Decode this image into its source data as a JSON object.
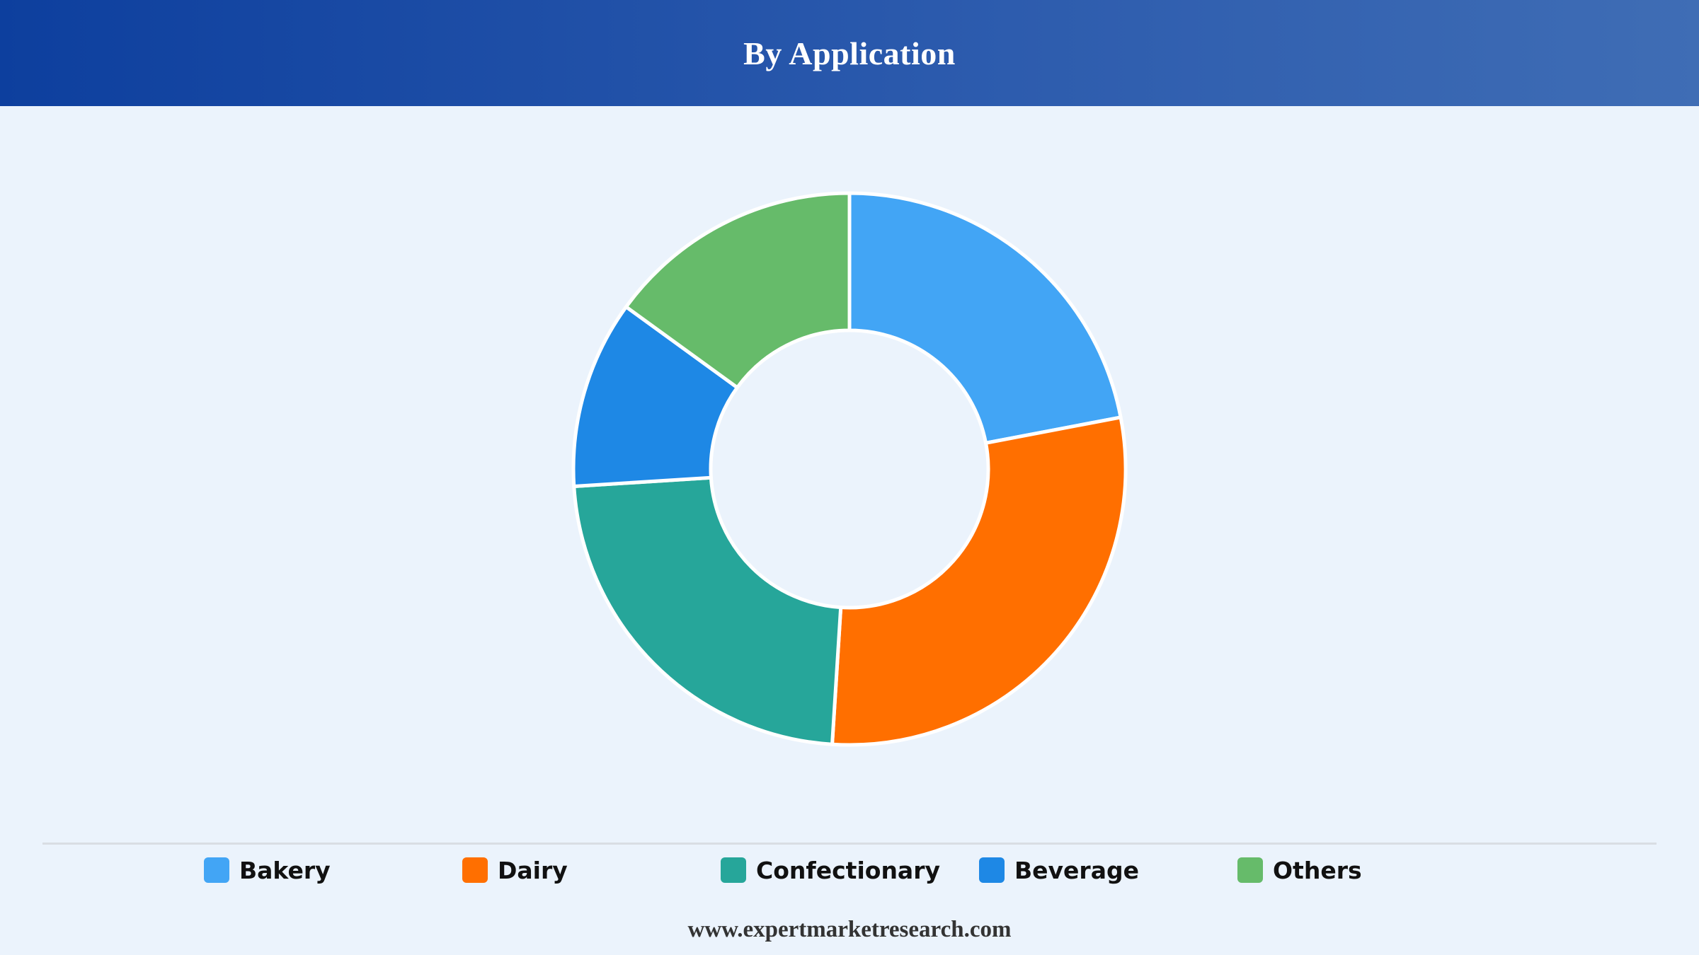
{
  "header": {
    "title": "By Application"
  },
  "chart_data": {
    "type": "pie",
    "variant": "donut",
    "title": "By Application",
    "legend_position": "bottom",
    "categories": [
      "Bakery",
      "Dairy",
      "Confectionary",
      "Beverage",
      "Others"
    ],
    "values": [
      22,
      29,
      23,
      11,
      15
    ],
    "colors": [
      "#42a5f5",
      "#ff6f00",
      "#26a69a",
      "#1e88e5",
      "#66bb6a"
    ],
    "slice_border_color": "#ffffff"
  },
  "footer": {
    "text": "www.expertmarketresearch.com"
  }
}
